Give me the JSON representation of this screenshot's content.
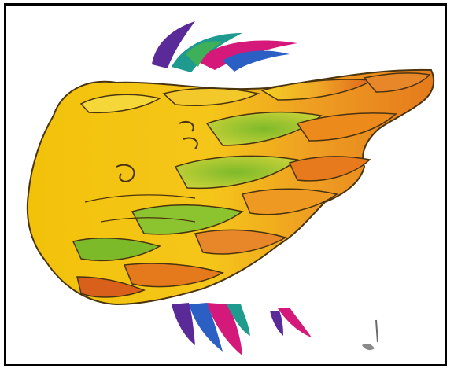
{
  "image": {
    "subject": "wing-illustration",
    "background_color": "#ffffff",
    "frame_color": "#000000",
    "palette": {
      "yellow": "#f2c20a",
      "yellow_light": "#f7df3c",
      "orange": "#ec8a1c",
      "orange_dark": "#d9601a",
      "green": "#7dba2a",
      "green_light": "#a9cf36",
      "outline": "#4a3410",
      "magenta": "#d4197a",
      "purple": "#5a2a98",
      "teal": "#1f9a8e",
      "blue": "#2c5fc4"
    }
  }
}
